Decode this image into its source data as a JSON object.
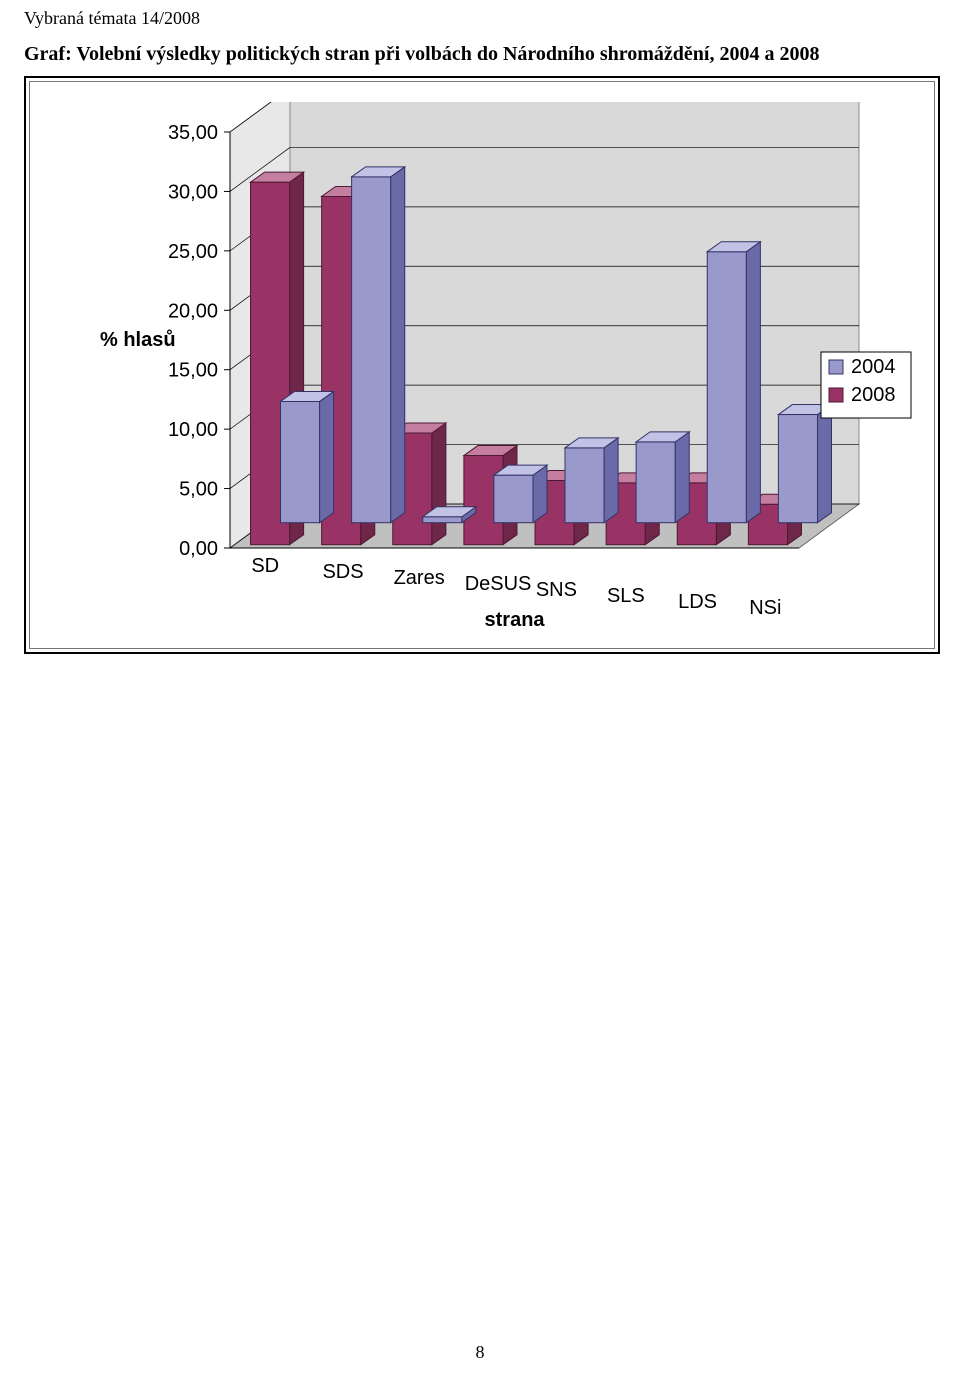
{
  "header_note": "Vybraná témata 14/2008",
  "title": "Graf: Volební výsledky politických stran při volbách do Národního shromáždění, 2004 a 2008",
  "page_number": "8",
  "chart": {
    "type": "bar-3d",
    "y_axis_label": "% hlasů",
    "x_axis_label": "strana",
    "categories": [
      "SD",
      "SDS",
      "Zares",
      "DeSUS",
      "SNS",
      "SLS",
      "LDS",
      "NSi"
    ],
    "series": [
      {
        "name": "2004",
        "color_fill": "#9999cc",
        "color_side": "#6a6aa9",
        "color_top": "#c2c2e6",
        "color_stroke": "#333366",
        "values": [
          10.2,
          29.1,
          0.5,
          4.0,
          6.3,
          6.8,
          22.8,
          9.1
        ]
      },
      {
        "name": "2008",
        "color_fill": "#993366",
        "color_side": "#6e2649",
        "color_top": "#c47ea0",
        "color_stroke": "#4d1a33",
        "values": [
          30.5,
          29.3,
          9.4,
          7.5,
          5.4,
          5.2,
          5.2,
          3.4
        ]
      }
    ],
    "ylim": [
      0,
      35
    ],
    "ytick_step": 5,
    "ytick_labels": [
      "0,00",
      "5,00",
      "10,00",
      "15,00",
      "20,00",
      "25,00",
      "30,00",
      "35,00"
    ],
    "background_color": "#ffffff",
    "floor_color": "#c0c0c0",
    "grid_color": "#000000",
    "wall_color": "#ffffff",
    "bar_width": 0.55,
    "bar_stroke_width": 1,
    "legend": {
      "position": "right",
      "border_color": "#000000",
      "bg_color": "#ffffff"
    },
    "fontsize_ticks": 20,
    "fontsize_axis_title": 20
  }
}
